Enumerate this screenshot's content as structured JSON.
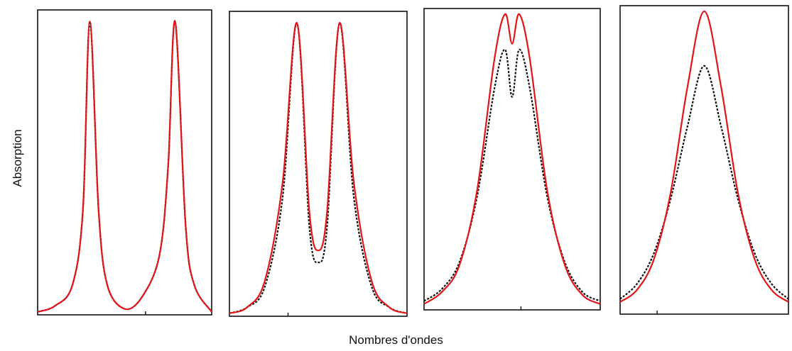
{
  "chart_data": {
    "type": "line",
    "xlabel": "Nombres d'ondes",
    "ylabel": "Absorption",
    "ylim": [
      0,
      1
    ],
    "xlim": [
      0,
      1
    ],
    "grid": false,
    "legend": "none",
    "colors": {
      "solid": "#e0161b",
      "dashed": "#111111"
    },
    "panels": [
      {
        "x": [
          0.0,
          0.1,
          0.2,
          0.26,
          0.3,
          0.35,
          0.4,
          0.5,
          0.6,
          0.7,
          0.75,
          0.79,
          0.85,
          0.9,
          1.0
        ],
        "series": [
          {
            "style": "solid",
            "values": [
              0.01,
              0.03,
              0.1,
              0.35,
              0.98,
              0.35,
              0.1,
              0.02,
              0.06,
              0.2,
              0.5,
              0.98,
              0.3,
              0.1,
              0.01
            ]
          },
          {
            "style": "dashed",
            "values": [
              0.01,
              0.03,
              0.1,
              0.35,
              0.98,
              0.35,
              0.1,
              0.02,
              0.06,
              0.2,
              0.5,
              0.98,
              0.3,
              0.1,
              0.01
            ]
          }
        ]
      },
      {
        "x": [
          0.0,
          0.1,
          0.2,
          0.3,
          0.38,
          0.45,
          0.5,
          0.55,
          0.62,
          0.7,
          0.8,
          0.9,
          1.0
        ],
        "series": [
          {
            "style": "solid",
            "values": [
              0.01,
              0.03,
              0.12,
              0.45,
              0.98,
              0.35,
              0.22,
              0.35,
              0.98,
              0.45,
              0.12,
              0.03,
              0.01
            ]
          },
          {
            "style": "dashed",
            "values": [
              0.01,
              0.03,
              0.1,
              0.4,
              0.98,
              0.3,
              0.18,
              0.3,
              0.98,
              0.4,
              0.1,
              0.03,
              0.01
            ]
          }
        ]
      },
      {
        "x": [
          0.0,
          0.1,
          0.2,
          0.3,
          0.4,
          0.46,
          0.5,
          0.54,
          0.6,
          0.7,
          0.8,
          0.9,
          1.0
        ],
        "series": [
          {
            "style": "solid",
            "values": [
              0.02,
              0.06,
              0.15,
              0.4,
              0.85,
              1.0,
              0.9,
              1.0,
              0.85,
              0.4,
              0.15,
              0.05,
              0.02
            ]
          },
          {
            "style": "dashed",
            "values": [
              0.03,
              0.07,
              0.16,
              0.38,
              0.75,
              0.88,
              0.72,
              0.88,
              0.75,
              0.38,
              0.16,
              0.06,
              0.03
            ]
          }
        ]
      },
      {
        "x": [
          0.0,
          0.1,
          0.2,
          0.3,
          0.4,
          0.5,
          0.6,
          0.7,
          0.8,
          0.9,
          1.0
        ],
        "series": [
          {
            "style": "solid",
            "values": [
              0.04,
              0.08,
              0.18,
              0.4,
              0.75,
              1.0,
              0.75,
              0.4,
              0.18,
              0.08,
              0.04
            ]
          },
          {
            "style": "dashed",
            "values": [
              0.05,
              0.1,
              0.2,
              0.38,
              0.62,
              0.82,
              0.62,
              0.38,
              0.2,
              0.1,
              0.05
            ]
          }
        ]
      }
    ]
  }
}
